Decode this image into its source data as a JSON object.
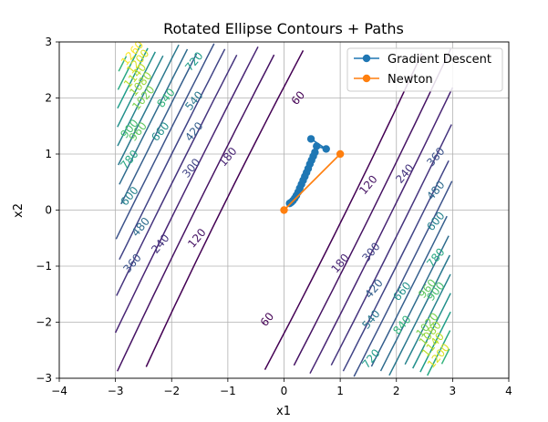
{
  "chart_data": {
    "type": "line",
    "title": "Rotated Ellipse Contours + Paths",
    "xlabel": "x1",
    "ylabel": "x2",
    "xlim": [
      -4,
      4
    ],
    "ylim": [
      -3,
      3
    ],
    "x_ticks": [
      -4,
      -3,
      -2,
      -1,
      0,
      1,
      2,
      3,
      4
    ],
    "y_ticks": [
      -3,
      -2,
      -1,
      0,
      1,
      2,
      3
    ],
    "grid": true,
    "legend_position": "top-right",
    "contour_domain": {
      "x": [
        -3,
        3
      ],
      "y": [
        -3,
        3
      ]
    },
    "contour_function": {
      "a": 60,
      "b": 0.5,
      "u_dir": [
        0.894,
        -0.447
      ],
      "v_dir": [
        0.447,
        0.894
      ]
    },
    "contour_levels": [
      60,
      120,
      180,
      240,
      300,
      360,
      420,
      480,
      540,
      600,
      660,
      720,
      780,
      840,
      900,
      960,
      1020,
      1080,
      1140,
      1200,
      1260
    ],
    "contour_labels": [
      {
        "text": "60",
        "x": 0.25,
        "y": 2.0
      },
      {
        "text": "60",
        "x": -0.3,
        "y": -1.95
      },
      {
        "text": "120",
        "x": -1.55,
        "y": -0.5
      },
      {
        "text": "120",
        "x": 1.5,
        "y": 0.45
      },
      {
        "text": "180",
        "x": -1.0,
        "y": 0.95
      },
      {
        "text": "180",
        "x": 1.0,
        "y": -0.95
      },
      {
        "text": "240",
        "x": -2.2,
        "y": -0.6
      },
      {
        "text": "240",
        "x": 2.15,
        "y": 0.65
      },
      {
        "text": "300",
        "x": -1.65,
        "y": 0.75
      },
      {
        "text": "300",
        "x": 1.55,
        "y": -0.75
      },
      {
        "text": "360",
        "x": -2.7,
        "y": -0.95
      },
      {
        "text": "360",
        "x": 2.7,
        "y": 0.95
      },
      {
        "text": "420",
        "x": -1.6,
        "y": 1.4
      },
      {
        "text": "420",
        "x": 1.6,
        "y": -1.4
      },
      {
        "text": "480",
        "x": -2.55,
        "y": -0.3
      },
      {
        "text": "480",
        "x": 2.7,
        "y": 0.35
      },
      {
        "text": "540",
        "x": -1.6,
        "y": 1.95
      },
      {
        "text": "540",
        "x": 1.55,
        "y": -1.95
      },
      {
        "text": "600",
        "x": -2.75,
        "y": 0.25
      },
      {
        "text": "600",
        "x": 2.7,
        "y": -0.2
      },
      {
        "text": "660",
        "x": -2.2,
        "y": 1.4
      },
      {
        "text": "660",
        "x": 2.1,
        "y": -1.45
      },
      {
        "text": "720",
        "x": -1.6,
        "y": 2.65
      },
      {
        "text": "720",
        "x": 1.55,
        "y": -2.65
      },
      {
        "text": "780",
        "x": -2.75,
        "y": 0.9
      },
      {
        "text": "780",
        "x": 2.7,
        "y": -0.85
      },
      {
        "text": "840",
        "x": -2.1,
        "y": 2.0
      },
      {
        "text": "840",
        "x": 2.1,
        "y": -2.05
      },
      {
        "text": "900",
        "x": -2.75,
        "y": 1.45
      },
      {
        "text": "900",
        "x": 2.7,
        "y": -1.45
      },
      {
        "text": "960",
        "x": -2.6,
        "y": 1.4
      },
      {
        "text": "960",
        "x": 2.55,
        "y": -1.4
      },
      {
        "text": "1020",
        "x": -2.5,
        "y": 2.0
      },
      {
        "text": "1020",
        "x": 2.55,
        "y": -2.05
      },
      {
        "text": "1080",
        "x": -2.55,
        "y": 2.25
      },
      {
        "text": "1080",
        "x": 2.6,
        "y": -2.2
      },
      {
        "text": "1140",
        "x": -2.65,
        "y": 2.4
      },
      {
        "text": "1140",
        "x": 2.65,
        "y": -2.4
      },
      {
        "text": "1200",
        "x": -2.6,
        "y": 2.65
      },
      {
        "text": "1200",
        "x": 2.75,
        "y": -2.6
      },
      {
        "text": "1260",
        "x": -2.7,
        "y": 2.8
      }
    ],
    "series": [
      {
        "name": "Gradient Descent",
        "color": "#1f77b4",
        "marker": "circle",
        "x": [
          0.48,
          0.75,
          0.58,
          0.55,
          0.52,
          0.49,
          0.46,
          0.43,
          0.4,
          0.37,
          0.34,
          0.31,
          0.28,
          0.25,
          0.22,
          0.19,
          0.16,
          0.13,
          0.1
        ],
        "y": [
          1.27,
          1.09,
          1.14,
          1.03,
          0.96,
          0.89,
          0.82,
          0.74,
          0.67,
          0.6,
          0.53,
          0.46,
          0.39,
          0.32,
          0.26,
          0.21,
          0.17,
          0.14,
          0.12
        ]
      },
      {
        "name": "Newton",
        "color": "#ff7f0e",
        "marker": "circle",
        "x": [
          1.0,
          0.0
        ],
        "y": [
          1.0,
          0.0
        ]
      }
    ]
  }
}
